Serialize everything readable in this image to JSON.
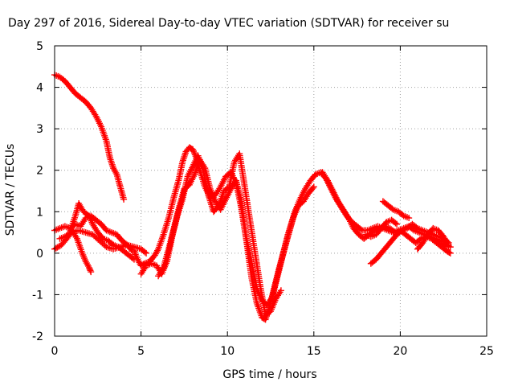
{
  "chart_data": {
    "type": "scatter",
    "title": "Day 297 of 2016, Sidereal Day-to-day VTEC variation (SDTVAR) for receiver su",
    "xlabel": "GPS time / hours",
    "ylabel": "SDTVAR / TECUs",
    "xlim": [
      0,
      25
    ],
    "ylim": [
      -2,
      5
    ],
    "x_ticks": [
      "0",
      "5",
      "10",
      "15",
      "20",
      "25"
    ],
    "y_ticks": [
      "-2",
      "-1",
      "0",
      "1",
      "2",
      "3",
      "4",
      "5"
    ],
    "grid": true,
    "legend": "none",
    "marker": "plus",
    "color": "#ff0000",
    "series": [
      {
        "x": [
          0.0,
          0.3,
          0.6,
          0.9,
          1.2,
          1.5,
          1.8,
          2.1,
          2.4,
          2.7,
          3.0,
          3.2,
          3.4,
          3.6,
          3.8,
          4.0
        ],
        "y": [
          4.3,
          4.25,
          4.15,
          4.0,
          3.85,
          3.75,
          3.65,
          3.5,
          3.3,
          3.05,
          2.7,
          2.3,
          2.05,
          1.9,
          1.6,
          1.3
        ]
      },
      {
        "x": [
          0.0,
          0.3,
          0.6,
          0.9,
          1.2,
          1.5,
          1.8,
          2.1,
          2.4,
          2.7,
          3.0,
          3.3,
          3.6,
          3.9,
          4.2,
          4.5
        ],
        "y": [
          0.55,
          0.6,
          0.65,
          0.6,
          0.7,
          0.65,
          0.85,
          0.9,
          0.8,
          0.7,
          0.55,
          0.5,
          0.45,
          0.3,
          0.2,
          0.05
        ]
      },
      {
        "x": [
          0.0,
          0.4,
          0.8,
          1.2,
          1.4,
          1.6,
          1.8,
          2.0,
          2.2,
          2.5,
          2.8,
          3.1,
          3.4,
          3.7,
          4.0,
          4.3,
          4.6
        ],
        "y": [
          0.1,
          0.2,
          0.4,
          0.9,
          1.2,
          1.05,
          0.95,
          0.9,
          0.7,
          0.5,
          0.35,
          0.3,
          0.2,
          0.15,
          0.05,
          -0.05,
          -0.15
        ]
      },
      {
        "x": [
          1.0,
          1.3,
          1.6,
          1.8,
          2.0,
          2.1
        ],
        "y": [
          0.55,
          0.35,
          0.0,
          -0.2,
          -0.35,
          -0.45
        ]
      },
      {
        "x": [
          0.3,
          0.6,
          1.0,
          1.4,
          1.8,
          2.2,
          2.6,
          3.0,
          3.4,
          3.8,
          4.2,
          4.6,
          5.0,
          5.3
        ],
        "y": [
          0.35,
          0.4,
          0.5,
          0.55,
          0.5,
          0.45,
          0.3,
          0.15,
          0.1,
          0.15,
          0.2,
          0.15,
          0.1,
          0.0
        ]
      },
      {
        "x": [
          4.6,
          4.8,
          5.0,
          5.2,
          5.5,
          5.8,
          6.0,
          6.3,
          6.6,
          6.9,
          7.2,
          7.4,
          7.6,
          7.8,
          8.0,
          8.2,
          8.4,
          8.7,
          9.0,
          9.3,
          9.6,
          9.9,
          10.2,
          10.5,
          10.8,
          11.1,
          11.4,
          11.7,
          12.0,
          12.2,
          12.4,
          12.7,
          13.0,
          13.3,
          13.6,
          13.9,
          14.2,
          14.5,
          14.8,
          15.1,
          15.4,
          15.7,
          16.0,
          16.3,
          16.6,
          16.9,
          17.2,
          17.5,
          17.8,
          18.1,
          18.4,
          18.7,
          19.0,
          19.3,
          19.6,
          19.9,
          20.2,
          20.5,
          20.8,
          21.1,
          21.4,
          21.7,
          22.0,
          22.3,
          22.6,
          22.9
        ],
        "y": [
          0.05,
          -0.15,
          -0.3,
          -0.25,
          -0.2,
          -0.05,
          0.1,
          0.45,
          0.85,
          1.35,
          1.8,
          2.2,
          2.45,
          2.55,
          2.5,
          2.3,
          2.0,
          1.6,
          1.35,
          1.4,
          1.6,
          1.85,
          1.95,
          1.7,
          1.1,
          0.3,
          -0.6,
          -1.2,
          -1.55,
          -1.6,
          -1.35,
          -0.85,
          -0.35,
          0.1,
          0.55,
          1.0,
          1.3,
          1.55,
          1.75,
          1.9,
          1.95,
          1.8,
          1.55,
          1.3,
          1.1,
          0.9,
          0.75,
          0.65,
          0.55,
          0.55,
          0.6,
          0.65,
          0.6,
          0.55,
          0.5,
          0.55,
          0.6,
          0.65,
          0.55,
          0.5,
          0.45,
          0.4,
          0.35,
          0.3,
          0.2,
          0.15
        ]
      },
      {
        "x": [
          5.0,
          5.3,
          5.6,
          5.9,
          6.2,
          6.5,
          6.8,
          7.1,
          7.4,
          7.7,
          8.0,
          8.3,
          8.6,
          8.9,
          9.2,
          9.5,
          9.8,
          10.1,
          10.4,
          10.7,
          11.0,
          11.3,
          11.6,
          11.9,
          12.2,
          12.5,
          12.8,
          13.1
        ],
        "y": [
          -0.5,
          -0.3,
          -0.25,
          -0.3,
          -0.5,
          -0.2,
          0.4,
          0.9,
          1.3,
          1.85,
          2.1,
          2.35,
          2.0,
          1.4,
          1.0,
          1.15,
          1.5,
          1.6,
          2.2,
          2.4,
          1.6,
          0.8,
          0.0,
          -0.8,
          -1.5,
          -1.4,
          -1.1,
          -0.9
        ]
      },
      {
        "x": [
          6.0,
          6.3,
          6.6,
          6.9,
          7.2,
          7.5,
          7.8,
          8.1,
          8.4,
          8.7,
          9.0,
          9.3,
          9.6,
          9.9,
          10.2,
          10.5,
          10.8,
          11.1,
          11.4,
          11.7,
          12.0,
          12.3,
          12.6,
          12.9,
          13.2,
          13.5,
          13.8,
          14.1,
          14.4,
          14.7,
          15.0
        ],
        "y": [
          -0.55,
          -0.35,
          0.1,
          0.6,
          1.1,
          1.55,
          1.65,
          1.9,
          2.25,
          2.05,
          1.55,
          1.25,
          1.05,
          1.3,
          1.55,
          1.75,
          1.25,
          0.35,
          -0.25,
          -0.85,
          -1.15,
          -1.25,
          -1.05,
          -0.55,
          -0.05,
          0.45,
          0.85,
          1.15,
          1.25,
          1.45,
          1.6
        ]
      },
      {
        "x": [
          15.5,
          15.8,
          16.1,
          16.4,
          16.7,
          17.0,
          17.3,
          17.6,
          17.9,
          18.2,
          18.5,
          18.8,
          19.1,
          19.4,
          19.7,
          20.0,
          20.3,
          20.6,
          20.9,
          21.2,
          21.5,
          21.8,
          22.1,
          22.4,
          22.7,
          22.9
        ],
        "y": [
          1.95,
          1.75,
          1.5,
          1.25,
          1.05,
          0.85,
          0.6,
          0.45,
          0.35,
          0.45,
          0.55,
          0.6,
          0.65,
          0.6,
          0.5,
          0.55,
          0.45,
          0.35,
          0.25,
          0.35,
          0.4,
          0.35,
          0.25,
          0.15,
          0.05,
          0.0
        ]
      },
      {
        "x": [
          18.3,
          18.6,
          18.9,
          19.2,
          19.5,
          19.8,
          20.1,
          20.4,
          20.7,
          21.0,
          21.3,
          21.6,
          21.9,
          22.2,
          22.5,
          22.8
        ],
        "y": [
          -0.25,
          -0.15,
          0.0,
          0.15,
          0.3,
          0.45,
          0.55,
          0.6,
          0.7,
          0.6,
          0.55,
          0.5,
          0.45,
          0.4,
          0.35,
          0.25
        ]
      },
      {
        "x": [
          19.0,
          19.3,
          19.6,
          19.9,
          20.2,
          20.5
        ],
        "y": [
          1.25,
          1.15,
          1.05,
          1.0,
          0.9,
          0.85
        ]
      },
      {
        "x": [
          18.0,
          18.3,
          18.6,
          18.9,
          19.2,
          19.5,
          19.8
        ],
        "y": [
          0.45,
          0.4,
          0.45,
          0.6,
          0.75,
          0.8,
          0.7
        ]
      },
      {
        "x": [
          21.0,
          21.3,
          21.6,
          21.9,
          22.2,
          22.5,
          22.8
        ],
        "y": [
          0.1,
          0.25,
          0.45,
          0.6,
          0.55,
          0.4,
          0.2
        ]
      }
    ]
  }
}
